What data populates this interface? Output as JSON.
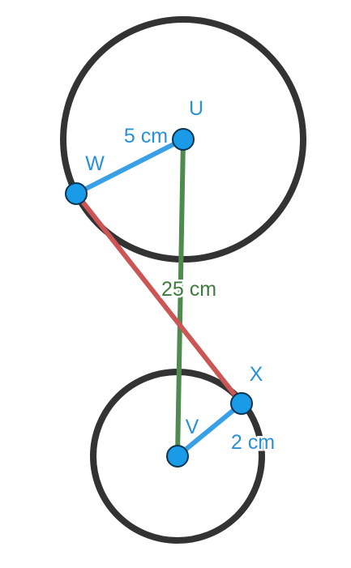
{
  "diagram": {
    "points": {
      "U": "U",
      "V": "V",
      "W": "W",
      "X": "X"
    },
    "measurements": {
      "radius_U": "5 cm",
      "radius_V": "2 cm",
      "center_distance": "25 cm"
    },
    "colors": {
      "circle_stroke": "#333333",
      "radius_line": "#3aa0e6",
      "center_line": "#4f8a4f",
      "tangent_line": "#cc5555",
      "point_fill": "#1a9be8",
      "point_stroke": "#0a3550",
      "label_blue": "#2a90d8",
      "label_green": "#3f7a3f"
    }
  }
}
